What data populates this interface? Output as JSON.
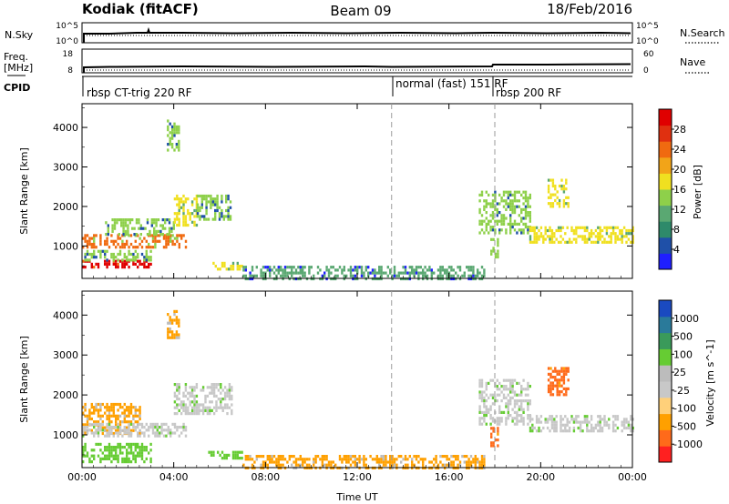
{
  "header": {
    "left_title": "Kodiak (fitACF)",
    "center_title": "Beam 09",
    "right_title": "18/Feb/2016"
  },
  "top_panels": {
    "nsky": {
      "left_label": "N.Sky",
      "left_ticks": [
        "10^5",
        "10^0"
      ],
      "right_label": "N.Search",
      "right_ticks": [
        "10^5",
        "10^0"
      ]
    },
    "freq": {
      "left_label_line1": "Freq.",
      "left_label_line2": "[MHz]",
      "left_ticks": [
        "18",
        "8"
      ],
      "right_label": "Nave",
      "right_ticks": [
        "60",
        "0"
      ]
    },
    "cpid": {
      "label": "CPID",
      "segments": [
        {
          "start_hour": 0.0,
          "text": "rbsp CT-trig 220 RF"
        },
        {
          "start_hour": 13.5,
          "text": "normal (fast) 151 RF"
        },
        {
          "start_hour": 18.0,
          "text": "rbsp 200 RF"
        }
      ]
    }
  },
  "colors": {
    "power_scale": [
      "#1f1fff",
      "#1f50a8",
      "#2e8a6a",
      "#5aa872",
      "#8ed04a",
      "#f0e020",
      "#f2a418",
      "#f06a10",
      "#e03010",
      "#e00000"
    ],
    "velocity_scale": [
      "#ff2020",
      "#ff6a1a",
      "#ffa000",
      "#ffd07a",
      "#c8c8c8",
      "#bcbcbc",
      "#66cc33",
      "#3a9a5a",
      "#2a7a9a",
      "#1a4ac0"
    ]
  },
  "chart_data": [
    {
      "type": "heatmap",
      "parameter": "power",
      "ylabel": "Slant Range [km]",
      "x_unit": "hours UT",
      "xlim": [
        0,
        24
      ],
      "ylim": [
        180,
        4600
      ],
      "x_ticks": [
        "00:00",
        "04:00",
        "08:00",
        "12:00",
        "16:00",
        "20:00",
        "00:00"
      ],
      "y_ticks": [
        1000,
        2000,
        3000,
        4000
      ],
      "vlines": [
        13.5,
        18.0
      ],
      "colorbar_label": "Power [dB]",
      "colorbar_ticks": [
        "4",
        "8",
        "12",
        "16",
        "20",
        "24",
        "28"
      ],
      "regions": [
        {
          "x": [
            0.0,
            3.0
          ],
          "y": [
            450,
            650
          ],
          "value": "28"
        },
        {
          "x": [
            0.0,
            3.0
          ],
          "y": [
            650,
            900
          ],
          "value": "12"
        },
        {
          "x": [
            0.0,
            4.5
          ],
          "y": [
            950,
            1300
          ],
          "value": "20"
        },
        {
          "x": [
            1.0,
            4.0
          ],
          "y": [
            1300,
            1700
          ],
          "value": "12"
        },
        {
          "x": [
            4.0,
            5.0
          ],
          "y": [
            1500,
            2300
          ],
          "value": "16"
        },
        {
          "x": [
            5.0,
            6.5
          ],
          "y": [
            1700,
            2300
          ],
          "value": "12"
        },
        {
          "x": [
            3.7,
            4.2
          ],
          "y": [
            3400,
            4200
          ],
          "value": "12"
        },
        {
          "x": [
            5.5,
            7.0
          ],
          "y": [
            400,
            600
          ],
          "value": "16"
        },
        {
          "x": [
            7.0,
            17.5
          ],
          "y": [
            200,
            500
          ],
          "value": "8"
        },
        {
          "x": [
            17.3,
            19.5
          ],
          "y": [
            1300,
            2400
          ],
          "value": "12"
        },
        {
          "x": [
            17.8,
            18.1
          ],
          "y": [
            700,
            1200
          ],
          "value": "12"
        },
        {
          "x": [
            19.5,
            24.0
          ],
          "y": [
            1100,
            1500
          ],
          "value": "16"
        },
        {
          "x": [
            20.3,
            21.2
          ],
          "y": [
            2000,
            2700
          ],
          "value": "16"
        }
      ]
    },
    {
      "type": "heatmap",
      "parameter": "velocity",
      "ylabel": "Slant Range [km]",
      "xlabel": "Time UT",
      "x_unit": "hours UT",
      "xlim": [
        0,
        24
      ],
      "ylim": [
        180,
        4600
      ],
      "x_ticks": [
        "00:00",
        "04:00",
        "08:00",
        "12:00",
        "16:00",
        "20:00",
        "00:00"
      ],
      "y_ticks": [
        1000,
        2000,
        3000,
        4000
      ],
      "vlines": [
        13.5,
        18.0
      ],
      "colorbar_label": "Velocity [m s^-1]",
      "colorbar_ticks": [
        "-1000",
        "-500",
        "-100",
        "-25",
        "25",
        "100",
        "500",
        "1000"
      ],
      "regions": [
        {
          "x": [
            0.0,
            3.0
          ],
          "y": [
            350,
            800
          ],
          "value": "100"
        },
        {
          "x": [
            0.0,
            2.5
          ],
          "y": [
            1050,
            1800
          ],
          "value": "-100"
        },
        {
          "x": [
            0.0,
            4.5
          ],
          "y": [
            950,
            1300
          ],
          "value": "0"
        },
        {
          "x": [
            4.0,
            6.5
          ],
          "y": [
            1500,
            2300
          ],
          "value": "0"
        },
        {
          "x": [
            3.7,
            4.2
          ],
          "y": [
            3400,
            4200
          ],
          "value": "-100"
        },
        {
          "x": [
            5.5,
            7.0
          ],
          "y": [
            400,
            600
          ],
          "value": "100"
        },
        {
          "x": [
            7.0,
            17.5
          ],
          "y": [
            200,
            500
          ],
          "value": "-100"
        },
        {
          "x": [
            17.3,
            19.5
          ],
          "y": [
            1300,
            2400
          ],
          "value": "0"
        },
        {
          "x": [
            17.8,
            18.1
          ],
          "y": [
            700,
            1200
          ],
          "value": "-500"
        },
        {
          "x": [
            19.5,
            24.0
          ],
          "y": [
            1100,
            1500
          ],
          "value": "0"
        },
        {
          "x": [
            20.3,
            21.2
          ],
          "y": [
            2000,
            2700
          ],
          "value": "-500"
        }
      ]
    }
  ]
}
